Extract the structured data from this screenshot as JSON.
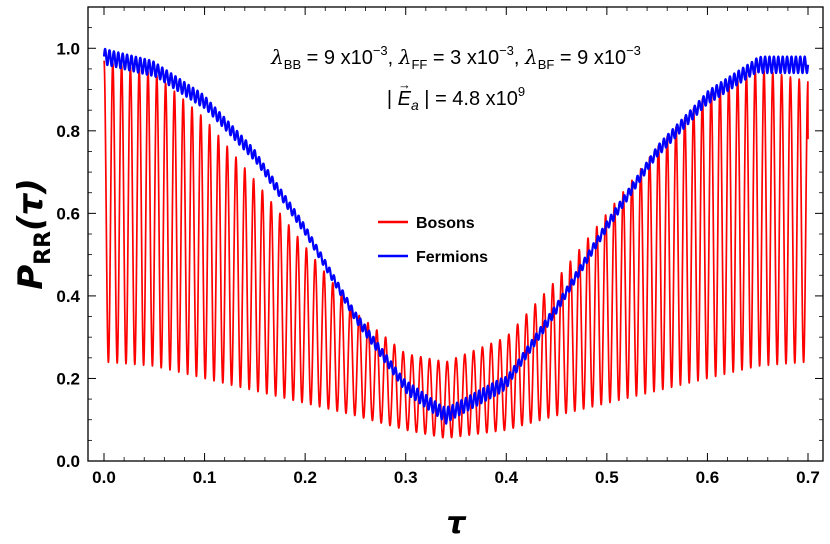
{
  "chart_data": {
    "type": "line",
    "title": "",
    "xlabel": "τ",
    "ylabel_main": "P",
    "ylabel_sub": "RR",
    "ylabel_arg": "(τ)",
    "xlim": [
      0,
      0.7
    ],
    "ylim": [
      0,
      1.1
    ],
    "xticks": [
      "0.0",
      "0.1",
      "0.2",
      "0.3",
      "0.4",
      "0.5",
      "0.6",
      "0.7"
    ],
    "yticks": [
      "0.0",
      "0.2",
      "0.4",
      "0.6",
      "0.8",
      "1.0"
    ],
    "grid": false,
    "legend_position": "center",
    "annotations": {
      "line1": [
        {
          "sym": "λ",
          "sub": "BB",
          "pre": " = 9 x10",
          "sup": "−3",
          "post": ","
        },
        {
          "sym": "λ",
          "sub": "FF",
          "pre": " = 3 x10",
          "sup": "−3",
          "post": ","
        },
        {
          "sym": "λ",
          "sub": "BF",
          "pre": " = 9 x10",
          "sup": "−3",
          "post": ""
        }
      ],
      "line2": {
        "bar": "|",
        "sym": "E",
        "vec": "→",
        "sub": "a",
        "pre": " = 4.8 x10",
        "sup": "9"
      }
    },
    "series": [
      {
        "name": "Bosons",
        "color": "#ff0000",
        "envelope_x": [
          0.0,
          0.05,
          0.1,
          0.15,
          0.2,
          0.25,
          0.3,
          0.34,
          0.4,
          0.45,
          0.5,
          0.55,
          0.6,
          0.65,
          0.7
        ],
        "upper": [
          0.97,
          0.94,
          0.83,
          0.68,
          0.52,
          0.36,
          0.26,
          0.24,
          0.3,
          0.44,
          0.6,
          0.76,
          0.89,
          0.95,
          0.92
        ],
        "lower": [
          0.24,
          0.23,
          0.2,
          0.17,
          0.14,
          0.11,
          0.075,
          0.055,
          0.075,
          0.11,
          0.14,
          0.17,
          0.2,
          0.23,
          0.24
        ],
        "oscillations": 80,
        "end_value": 0.78
      },
      {
        "name": "Fermions",
        "color": "#0000ff",
        "x": [
          0.0,
          0.05,
          0.1,
          0.15,
          0.2,
          0.25,
          0.3,
          0.34,
          0.4,
          0.45,
          0.5,
          0.55,
          0.6,
          0.65,
          0.7
        ],
        "y": [
          0.98,
          0.95,
          0.87,
          0.74,
          0.56,
          0.35,
          0.18,
          0.11,
          0.19,
          0.37,
          0.57,
          0.75,
          0.88,
          0.96,
          0.96
        ],
        "ripple": 0.02,
        "oscillations": 160
      }
    ]
  }
}
